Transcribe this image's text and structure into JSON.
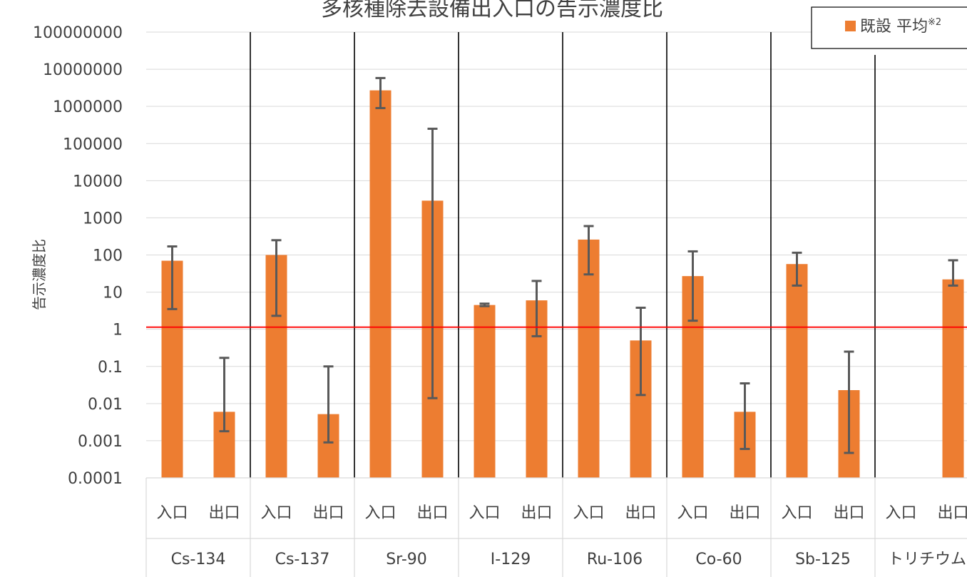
{
  "chart_data": {
    "type": "bar",
    "title": "多核種除去設備出入口の告示濃度比",
    "ylabel": "告示濃度比",
    "xlabel": "",
    "yscale": "log",
    "ylim": [
      0.0001,
      100000000
    ],
    "yticks": [
      "100000000",
      "10000000",
      "1000000",
      "100000",
      "10000",
      "1000",
      "100",
      "10",
      "1",
      "0.1",
      "0.01",
      "0.001",
      "0.0001"
    ],
    "groups": [
      "Cs-134",
      "Cs-137",
      "Sr-90",
      "I-129",
      "Ru-106",
      "Co-60",
      "Sb-125",
      "トリチウム"
    ],
    "subcategories": [
      "入口",
      "出口"
    ],
    "legend": {
      "label": "既設 平均",
      "superscript": "※2",
      "position": "top-right"
    },
    "grid": true,
    "reference_line": {
      "value": 1,
      "color": "#ff0000"
    },
    "colors": {
      "bar": "#ed7d31",
      "error": "#595959",
      "grid": "#d9d9d9",
      "separator": "#000000"
    },
    "series": [
      {
        "name": "既設 平均",
        "points": [
          {
            "group": "Cs-134",
            "sub": "入口",
            "value": 70,
            "err_low": 3.5,
            "err_high": 170
          },
          {
            "group": "Cs-134",
            "sub": "出口",
            "value": 0.006,
            "err_low": 0.0018,
            "err_high": 0.17
          },
          {
            "group": "Cs-137",
            "sub": "入口",
            "value": 100,
            "err_low": 2.3,
            "err_high": 250
          },
          {
            "group": "Cs-137",
            "sub": "出口",
            "value": 0.0052,
            "err_low": 0.0009,
            "err_high": 0.1
          },
          {
            "group": "Sr-90",
            "sub": "入口",
            "value": 2700000,
            "err_low": 900000,
            "err_high": 5800000
          },
          {
            "group": "Sr-90",
            "sub": "出口",
            "value": 2900,
            "err_low": 0.014,
            "err_high": 250000
          },
          {
            "group": "I-129",
            "sub": "入口",
            "value": 4.5,
            "err_low": 4.2,
            "err_high": 4.9
          },
          {
            "group": "I-129",
            "sub": "出口",
            "value": 6,
            "err_low": 0.65,
            "err_high": 20
          },
          {
            "group": "Ru-106",
            "sub": "入口",
            "value": 260,
            "err_low": 30,
            "err_high": 600
          },
          {
            "group": "Ru-106",
            "sub": "出口",
            "value": 0.5,
            "err_low": 0.017,
            "err_high": 3.8
          },
          {
            "group": "Co-60",
            "sub": "入口",
            "value": 27,
            "err_low": 1.7,
            "err_high": 125
          },
          {
            "group": "Co-60",
            "sub": "出口",
            "value": 0.006,
            "err_low": 0.0006,
            "err_high": 0.035
          },
          {
            "group": "Sb-125",
            "sub": "入口",
            "value": 57,
            "err_low": 15,
            "err_high": 115
          },
          {
            "group": "Sb-125",
            "sub": "出口",
            "value": 0.023,
            "err_low": 0.00047,
            "err_high": 0.25
          },
          {
            "group": "トリチウム",
            "sub": "出口",
            "value": 22,
            "err_low": 15,
            "err_high": 72
          }
        ]
      }
    ]
  }
}
